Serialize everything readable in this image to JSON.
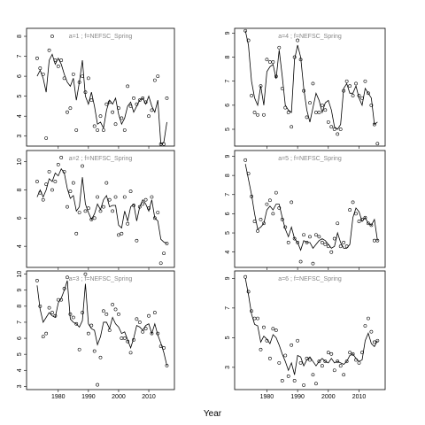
{
  "x_label": "Year",
  "chart_data": [
    {
      "type": "line",
      "title": "a=1 ; f=NEFSC_Spring",
      "xlim": [
        1969.5,
        2018.5
      ],
      "xticks": [
        1980,
        1990,
        2000,
        2010
      ],
      "ylim": [
        2.5,
        8.4
      ],
      "yticks": [
        3,
        4,
        5,
        6,
        7,
        8
      ],
      "x": [
        1973,
        1974,
        1975,
        1976,
        1977,
        1978,
        1979,
        1980,
        1981,
        1982,
        1983,
        1984,
        1985,
        1986,
        1987,
        1988,
        1989,
        1990,
        1991,
        1992,
        1993,
        1994,
        1995,
        1996,
        1997,
        1998,
        1999,
        2000,
        2001,
        2002,
        2003,
        2004,
        2005,
        2006,
        2007,
        2008,
        2009,
        2010,
        2011,
        2012,
        2013,
        2014,
        2015,
        2016
      ],
      "series": [
        {
          "type": "scatter",
          "color": "#000000",
          "values": [
            6.9,
            6.4,
            6.1,
            2.9,
            7.3,
            8.0,
            6.8,
            6.5,
            6.8,
            5.9,
            4.2,
            4.4,
            6.1,
            3.3,
            5.7,
            6.0,
            5.2,
            5.9,
            4.8,
            3.5,
            3.3,
            4.0,
            3.3,
            4.6,
            4.7,
            4.2,
            3.6,
            4.4,
            3.9,
            3.3,
            5.5,
            4.5,
            4.9,
            4.6,
            4.8,
            4.9,
            4.7,
            4.0,
            4.3,
            5.8,
            6.0,
            2.6,
            2.6,
            4.9
          ]
        },
        {
          "type": "line",
          "color": "#000000",
          "values": [
            6.0,
            6.3,
            5.9,
            5.2,
            6.8,
            7.1,
            6.6,
            6.9,
            6.6,
            6.1,
            5.7,
            5.5,
            5.9,
            4.8,
            5.7,
            6.8,
            5.0,
            4.6,
            5.2,
            4.5,
            3.6,
            3.7,
            3.4,
            4.3,
            4.8,
            4.6,
            4.9,
            4.1,
            3.6,
            3.9,
            4.5,
            4.7,
            4.2,
            4.5,
            4.8,
            4.9,
            4.6,
            5.0,
            4.5,
            4.2,
            4.8,
            2.6,
            2.7,
            3.7
          ]
        }
      ]
    },
    {
      "type": "line",
      "title": "a=2 ; f=NEFSC_Spring",
      "xlim": [
        1969.5,
        2018.5
      ],
      "xticks": [
        1980,
        1990,
        2000,
        2010
      ],
      "ylim": [
        2.5,
        10.8
      ],
      "yticks": [
        4,
        6,
        8,
        10
      ],
      "x": [
        1973,
        1974,
        1975,
        1976,
        1977,
        1978,
        1979,
        1980,
        1981,
        1982,
        1983,
        1984,
        1985,
        1986,
        1987,
        1988,
        1989,
        1990,
        1991,
        1992,
        1993,
        1994,
        1995,
        1996,
        1997,
        1998,
        1999,
        2000,
        2001,
        2002,
        2003,
        2004,
        2005,
        2006,
        2007,
        2008,
        2009,
        2010,
        2011,
        2012,
        2013,
        2014,
        2015,
        2016
      ],
      "series": [
        {
          "type": "scatter",
          "color": "#000000",
          "values": [
            8.6,
            7.8,
            7.3,
            8.4,
            9.3,
            8.0,
            8.6,
            9.8,
            10.3,
            9.3,
            6.8,
            7.9,
            8.5,
            4.9,
            6.4,
            9.7,
            6.5,
            6.7,
            5.9,
            6.0,
            7.5,
            6.5,
            6.8,
            8.5,
            7.3,
            6.5,
            7.5,
            4.8,
            4.9,
            7.5,
            5.6,
            7.9,
            6.9,
            4.4,
            6.8,
            7.0,
            7.3,
            6.7,
            7.5,
            6.0,
            6.4,
            2.8,
            3.5,
            4.2
          ]
        },
        {
          "type": "line",
          "color": "#000000",
          "values": [
            7.5,
            8.0,
            7.5,
            8.0,
            8.8,
            8.6,
            9.2,
            9.0,
            9.5,
            9.2,
            8.1,
            7.4,
            7.6,
            6.5,
            6.8,
            8.9,
            7.0,
            6.4,
            5.9,
            6.3,
            7.0,
            6.6,
            7.3,
            7.6,
            6.8,
            6.9,
            6.9,
            5.5,
            5.3,
            6.5,
            5.8,
            6.8,
            7.0,
            5.8,
            6.8,
            7.3,
            7.0,
            6.5,
            7.3,
            6.0,
            5.8,
            4.5,
            4.3,
            4.2
          ]
        }
      ]
    },
    {
      "type": "line",
      "title": "a=3 ; f=NEFSC_Spring",
      "xlim": [
        1969.5,
        2018.5
      ],
      "xticks": [
        1980,
        1990,
        2000,
        2010
      ],
      "ylim": [
        2.8,
        10.2
      ],
      "yticks": [
        3,
        4,
        5,
        6,
        7,
        8,
        9,
        10
      ],
      "x": [
        1973,
        1974,
        1975,
        1976,
        1977,
        1978,
        1979,
        1980,
        1981,
        1982,
        1983,
        1984,
        1985,
        1986,
        1987,
        1988,
        1989,
        1990,
        1991,
        1992,
        1993,
        1994,
        1995,
        1996,
        1997,
        1998,
        1999,
        2000,
        2001,
        2002,
        2003,
        2004,
        2005,
        2006,
        2007,
        2008,
        2009,
        2010,
        2011,
        2012,
        2013,
        2014,
        2015,
        2016
      ],
      "series": [
        {
          "type": "scatter",
          "color": "#000000",
          "values": [
            9.6,
            8.0,
            6.1,
            6.3,
            7.9,
            7.6,
            7.4,
            8.4,
            8.4,
            9.1,
            9.8,
            7.5,
            7.3,
            6.9,
            5.3,
            7.6,
            10.0,
            6.3,
            6.8,
            5.2,
            3.1,
            4.8,
            7.7,
            7.5,
            6.5,
            8.1,
            7.8,
            7.5,
            6.0,
            6.0,
            5.8,
            5.1,
            5.9,
            7.2,
            7.0,
            6.4,
            6.6,
            7.4,
            6.3,
            7.6,
            6.3,
            5.5,
            5.4,
            4.3
          ]
        },
        {
          "type": "line",
          "color": "#000000",
          "values": [
            9.3,
            7.8,
            7.0,
            7.3,
            7.6,
            7.4,
            7.3,
            8.2,
            8.5,
            9.0,
            9.6,
            7.2,
            7.0,
            6.9,
            6.7,
            7.1,
            9.4,
            6.9,
            6.6,
            6.5,
            5.6,
            6.1,
            7.0,
            7.0,
            6.6,
            7.3,
            6.9,
            6.7,
            6.3,
            6.4,
            5.9,
            5.4,
            6.0,
            6.8,
            6.7,
            6.5,
            6.8,
            6.9,
            6.3,
            6.9,
            6.2,
            5.7,
            5.1,
            4.3
          ]
        }
      ]
    },
    {
      "type": "line",
      "title": "a=4 ; f=NEFSC_Spring",
      "xlim": [
        1969.5,
        2018.5
      ],
      "xticks": [
        1980,
        1990,
        2000,
        2010
      ],
      "ylim": [
        4.3,
        9.2
      ],
      "yticks": [
        5,
        6,
        7,
        8,
        9
      ],
      "x": [
        1973,
        1974,
        1975,
        1976,
        1977,
        1978,
        1979,
        1980,
        1981,
        1982,
        1983,
        1984,
        1985,
        1986,
        1987,
        1988,
        1989,
        1990,
        1991,
        1992,
        1993,
        1994,
        1995,
        1996,
        1997,
        1998,
        1999,
        2000,
        2001,
        2002,
        2003,
        2004,
        2005,
        2006,
        2007,
        2008,
        2009,
        2010,
        2011,
        2012,
        2013,
        2014,
        2015,
        2016
      ],
      "series": [
        {
          "type": "scatter",
          "color": "#000000",
          "values": [
            9.1,
            8.7,
            6.4,
            5.7,
            5.6,
            6.8,
            5.6,
            7.9,
            7.8,
            7.8,
            7.2,
            8.4,
            6.7,
            5.9,
            5.7,
            5.1,
            8.0,
            8.7,
            7.9,
            6.6,
            5.5,
            6.1,
            6.9,
            5.7,
            5.7,
            6.0,
            5.8,
            5.3,
            5.1,
            5.0,
            4.8,
            5.0,
            6.6,
            7.0,
            6.8,
            6.4,
            6.9,
            6.4,
            6.3,
            7.0,
            6.5,
            6.0,
            5.2,
            4.4
          ]
        },
        {
          "type": "line",
          "color": "#000000",
          "values": [
            9.1,
            8.5,
            7.0,
            6.3,
            6.0,
            6.8,
            6.0,
            7.4,
            7.6,
            7.7,
            7.1,
            8.3,
            7.2,
            6.0,
            5.8,
            5.7,
            7.9,
            8.5,
            8.0,
            6.7,
            5.8,
            5.3,
            5.9,
            6.5,
            6.2,
            5.7,
            6.1,
            6.2,
            5.8,
            5.1,
            5.0,
            5.2,
            6.7,
            6.9,
            6.5,
            6.5,
            6.8,
            6.3,
            6.0,
            6.7,
            6.5,
            6.3,
            5.2,
            5.3
          ]
        }
      ]
    },
    {
      "type": "line",
      "title": "a=5 ; f=NEFSC_Spring",
      "xlim": [
        1969.5,
        2018.5
      ],
      "xticks": [
        1980,
        1990,
        2000,
        2010
      ],
      "ylim": [
        3.2,
        9.3
      ],
      "yticks": [
        4,
        5,
        6,
        7,
        8,
        9
      ],
      "x": [
        1973,
        1974,
        1975,
        1976,
        1977,
        1978,
        1979,
        1980,
        1981,
        1982,
        1983,
        1984,
        1985,
        1986,
        1987,
        1988,
        1989,
        1990,
        1991,
        1992,
        1993,
        1994,
        1995,
        1996,
        1997,
        1998,
        1999,
        2000,
        2001,
        2002,
        2003,
        2004,
        2005,
        2006,
        2007,
        2008,
        2009,
        2010,
        2011,
        2012,
        2013,
        2014,
        2015,
        2016
      ],
      "series": [
        {
          "type": "scatter",
          "color": "#000000",
          "values": [
            8.8,
            8.1,
            6.9,
            5.6,
            5.1,
            5.7,
            5.5,
            6.5,
            6.7,
            6.0,
            7.1,
            6.3,
            5.7,
            5.3,
            4.5,
            6.6,
            4.7,
            4.5,
            3.5,
            4.9,
            4.5,
            4.8,
            3.4,
            4.9,
            4.8,
            4.5,
            4.4,
            4.3,
            4.0,
            4.7,
            5.5,
            4.3,
            4.5,
            4.3,
            6.2,
            6.6,
            6.0,
            5.6,
            5.7,
            5.8,
            5.5,
            5.4,
            4.6,
            4.6
          ]
        },
        {
          "type": "line",
          "color": "#000000",
          "values": [
            8.6,
            7.8,
            7.0,
            6.0,
            5.2,
            5.3,
            5.5,
            6.2,
            6.4,
            6.2,
            6.5,
            6.5,
            5.8,
            5.2,
            4.8,
            5.3,
            4.7,
            4.5,
            4.1,
            4.6,
            4.5,
            4.5,
            4.2,
            4.4,
            4.6,
            4.7,
            4.6,
            4.4,
            4.2,
            4.3,
            5.0,
            4.5,
            4.2,
            4.2,
            4.4,
            5.8,
            6.3,
            6.1,
            5.6,
            5.8,
            5.5,
            5.4,
            5.7,
            4.6
          ]
        }
      ]
    },
    {
      "type": "line",
      "title": "a=6 ; f=NEFSC_Spring",
      "xlim": [
        1969.5,
        2018.5
      ],
      "xticks": [
        1980,
        1990,
        2000,
        2010
      ],
      "ylim": [
        1.5,
        9.5
      ],
      "yticks": [
        3,
        5,
        7,
        9
      ],
      "x": [
        1973,
        1974,
        1975,
        1976,
        1977,
        1978,
        1979,
        1980,
        1981,
        1982,
        1983,
        1984,
        1985,
        1986,
        1987,
        1988,
        1989,
        1990,
        1991,
        1992,
        1993,
        1994,
        1995,
        1996,
        1997,
        1998,
        1999,
        2000,
        2001,
        2002,
        2003,
        2004,
        2005,
        2006,
        2007,
        2008,
        2009,
        2010,
        2011,
        2012,
        2013,
        2014,
        2015,
        2016
      ],
      "series": [
        {
          "type": "scatter",
          "color": "#000000",
          "values": [
            9.1,
            8.1,
            6.8,
            6.3,
            6.3,
            4.2,
            5.7,
            4.8,
            3.6,
            5.6,
            5.5,
            3.3,
            2.1,
            3.8,
            2.4,
            4.5,
            2.1,
            4.8,
            3.3,
            1.8,
            3.6,
            3.5,
            2.5,
            1.9,
            3.4,
            3.1,
            3.4,
            4.0,
            3.9,
            2.8,
            3.4,
            3.1,
            2.5,
            3.4,
            4.0,
            3.9,
            3.5,
            3.3,
            4.0,
            5.8,
            6.3,
            5.4,
            4.7,
            4.8
          ]
        },
        {
          "type": "line",
          "color": "#000000",
          "values": [
            9.0,
            7.9,
            6.6,
            5.9,
            5.8,
            4.7,
            5.1,
            4.9,
            4.6,
            5.2,
            5.0,
            4.5,
            3.9,
            3.4,
            2.8,
            3.3,
            2.5,
            3.8,
            3.7,
            3.1,
            3.5,
            3.7,
            3.4,
            3.1,
            3.4,
            3.6,
            3.4,
            3.3,
            3.6,
            3.3,
            3.4,
            3.3,
            3.2,
            3.4,
            3.8,
            3.9,
            3.6,
            3.4,
            3.5,
            4.8,
            5.3,
            4.6,
            4.4,
            4.8
          ]
        }
      ]
    }
  ]
}
